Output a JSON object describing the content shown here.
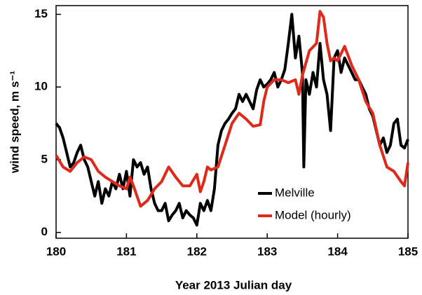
{
  "chart_data": {
    "type": "line",
    "xlabel": "Year 2013 Julian day",
    "ylabel": "wind speed, m s⁻¹",
    "xlim": [
      180,
      185
    ],
    "xticks": [
      180,
      181,
      182,
      183,
      184,
      185
    ],
    "ylim": [
      -0.4,
      15.6
    ],
    "yticks": [
      0,
      5,
      10,
      15
    ],
    "legend": "lower right",
    "series": [
      {
        "name": "Melville",
        "color": "#000000",
        "x": [
          180.0,
          180.05,
          180.1,
          180.15,
          180.2,
          180.25,
          180.3,
          180.35,
          180.4,
          180.45,
          180.5,
          180.55,
          180.6,
          180.65,
          180.7,
          180.75,
          180.8,
          180.85,
          180.9,
          180.95,
          181.0,
          181.05,
          181.1,
          181.15,
          181.2,
          181.25,
          181.3,
          181.35,
          181.4,
          181.45,
          181.5,
          181.55,
          181.6,
          181.65,
          181.7,
          181.75,
          181.8,
          181.85,
          181.9,
          181.95,
          182.0,
          182.05,
          182.1,
          182.15,
          182.2,
          182.25,
          182.3,
          182.35,
          182.4,
          182.45,
          182.5,
          182.55,
          182.6,
          182.65,
          182.7,
          182.75,
          182.8,
          182.85,
          182.9,
          182.95,
          183.0,
          183.05,
          183.1,
          183.15,
          183.2,
          183.25,
          183.3,
          183.35,
          183.4,
          183.45,
          183.5,
          183.52,
          183.55,
          183.6,
          183.65,
          183.7,
          183.75,
          183.8,
          183.85,
          183.9,
          183.95,
          184.0,
          184.05,
          184.1,
          184.15,
          184.2,
          184.25,
          184.3,
          184.35,
          184.4,
          184.45,
          184.5,
          184.55,
          184.6,
          184.65,
          184.7,
          184.75,
          184.8,
          184.85,
          184.9,
          184.95,
          185.0
        ],
        "values": [
          7.5,
          7.2,
          6.5,
          5.5,
          4.5,
          4.8,
          5.5,
          6.0,
          5.0,
          4.5,
          3.5,
          2.5,
          3.5,
          2.0,
          3.0,
          2.5,
          3.5,
          3.0,
          4.0,
          3.0,
          4.2,
          2.5,
          5.0,
          4.5,
          4.8,
          4.0,
          4.5,
          3.0,
          2.0,
          1.5,
          1.5,
          2.0,
          0.8,
          1.2,
          1.5,
          2.0,
          1.0,
          1.5,
          1.2,
          1.0,
          0.5,
          2.0,
          1.5,
          2.2,
          1.5,
          3.0,
          6.0,
          7.0,
          7.5,
          7.8,
          8.2,
          8.5,
          9.5,
          9.0,
          9.5,
          9.0,
          8.5,
          9.8,
          10.5,
          10.0,
          10.2,
          10.5,
          11.0,
          10.0,
          10.5,
          11.2,
          13.0,
          15.0,
          12.0,
          13.5,
          11.0,
          4.5,
          10.5,
          9.5,
          11.0,
          10.0,
          13.0,
          10.5,
          9.5,
          7.0,
          12.0,
          12.5,
          11.0,
          12.0,
          11.5,
          11.0,
          10.5,
          10.5,
          10.0,
          9.5,
          8.5,
          8.0,
          7.0,
          6.0,
          6.5,
          5.5,
          6.0,
          7.5,
          7.8,
          6.0,
          5.8,
          6.4
        ]
      },
      {
        "name": "Model (hourly)",
        "color": "#e0281b",
        "x": [
          180.0,
          180.1,
          180.2,
          180.3,
          180.4,
          180.5,
          180.6,
          180.7,
          180.8,
          180.9,
          181.0,
          181.05,
          181.1,
          181.2,
          181.3,
          181.4,
          181.5,
          181.6,
          181.7,
          181.8,
          181.9,
          182.0,
          182.05,
          182.1,
          182.15,
          182.2,
          182.3,
          182.4,
          182.5,
          182.6,
          182.7,
          182.8,
          182.9,
          182.95,
          183.0,
          183.1,
          183.2,
          183.3,
          183.4,
          183.45,
          183.5,
          183.6,
          183.7,
          183.75,
          183.8,
          183.85,
          183.9,
          183.95,
          184.0,
          184.1,
          184.2,
          184.3,
          184.4,
          184.5,
          184.6,
          184.7,
          184.8,
          184.9,
          184.95,
          185.0
        ],
        "values": [
          5.3,
          4.5,
          4.2,
          4.8,
          5.2,
          5.0,
          4.2,
          3.8,
          3.5,
          3.2,
          3.0,
          3.8,
          3.2,
          1.8,
          2.2,
          3.0,
          3.5,
          4.5,
          3.8,
          3.2,
          3.2,
          4.0,
          2.8,
          3.5,
          4.5,
          4.3,
          4.5,
          6.0,
          7.5,
          8.2,
          7.8,
          7.3,
          7.4,
          9.0,
          10.0,
          10.5,
          10.5,
          10.3,
          10.5,
          9.5,
          10.8,
          12.5,
          13.0,
          15.2,
          14.8,
          13.0,
          11.8,
          12.0,
          11.8,
          12.8,
          11.5,
          10.5,
          9.0,
          8.2,
          6.0,
          4.5,
          4.2,
          3.5,
          3.2,
          4.8
        ]
      }
    ]
  }
}
